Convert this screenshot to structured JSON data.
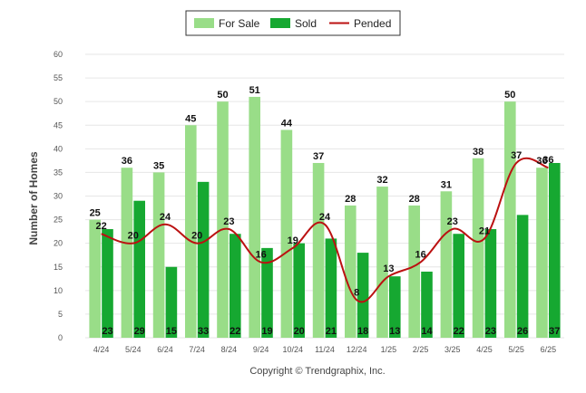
{
  "chart_data": {
    "type": "bar",
    "categories": [
      "4/24",
      "5/24",
      "6/24",
      "7/24",
      "8/24",
      "9/24",
      "10/24",
      "11/24",
      "12/24",
      "1/25",
      "2/25",
      "3/25",
      "4/25",
      "5/25",
      "6/25"
    ],
    "series": [
      {
        "name": "For Sale",
        "type": "bar",
        "color": "#99dd88",
        "values": [
          25,
          36,
          35,
          45,
          50,
          51,
          44,
          37,
          28,
          32,
          28,
          31,
          38,
          50,
          36
        ]
      },
      {
        "name": "Sold",
        "type": "bar",
        "color": "#16a831",
        "values": [
          23,
          29,
          15,
          33,
          22,
          19,
          20,
          21,
          18,
          13,
          14,
          22,
          23,
          26,
          37
        ]
      },
      {
        "name": "Pended",
        "type": "line",
        "color": "#bb1111",
        "values": [
          22,
          20,
          24,
          20,
          23,
          16,
          19,
          24,
          8,
          13,
          16,
          23,
          21,
          37,
          36
        ]
      }
    ],
    "ylabel": "Number of Homes",
    "ylim": [
      0,
      60
    ],
    "yticks": [
      0,
      5,
      10,
      15,
      20,
      25,
      30,
      35,
      40,
      45,
      50,
      55,
      60
    ],
    "legend_position": "top-center",
    "grid": true
  },
  "footer": {
    "copyright": "Copyright © Trendgraphix, Inc."
  }
}
